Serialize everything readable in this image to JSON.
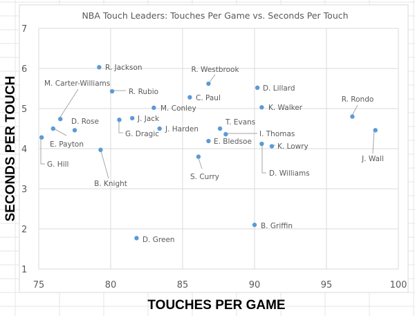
{
  "chart_data": {
    "type": "scatter",
    "title": "NBA Touch Leaders: Touches Per Game vs. Seconds Per Touch",
    "xlabel": "TOUCHES PER GAME",
    "ylabel": "SECONDS PER TOUCH",
    "xlim": [
      75,
      100
    ],
    "ylim": [
      1,
      7
    ],
    "xticks": [
      "75",
      "80",
      "85",
      "90",
      "95",
      "100"
    ],
    "yticks": [
      "1",
      "2",
      "3",
      "4",
      "5",
      "6",
      "7"
    ],
    "grid": true,
    "legend": "none",
    "marker_color": "#5b9bd5",
    "points": [
      {
        "label": "R. Jackson",
        "x": 79.2,
        "y": 6.03
      },
      {
        "label": "R. Westbrook",
        "x": 86.8,
        "y": 5.62
      },
      {
        "label": "D. Lillard",
        "x": 90.2,
        "y": 5.52
      },
      {
        "label": "R. Rubio",
        "x": 80.1,
        "y": 5.43
      },
      {
        "label": "C. Paul",
        "x": 85.5,
        "y": 5.28
      },
      {
        "label": "M. Conley",
        "x": 83.0,
        "y": 5.02
      },
      {
        "label": "K. Walker",
        "x": 90.5,
        "y": 5.03
      },
      {
        "label": "R. Rondo",
        "x": 96.8,
        "y": 4.8
      },
      {
        "label": "M. Carter-Williams",
        "x": 76.5,
        "y": 4.74
      },
      {
        "label": "J. Jack",
        "x": 81.5,
        "y": 4.76
      },
      {
        "label": "G. Dragic",
        "x": 80.6,
        "y": 4.72
      },
      {
        "label": "D. Rose",
        "x": 77.5,
        "y": 4.46
      },
      {
        "label": "E. Payton",
        "x": 76.0,
        "y": 4.5
      },
      {
        "label": "J. Harden",
        "x": 83.4,
        "y": 4.5
      },
      {
        "label": "T. Evans",
        "x": 87.6,
        "y": 4.5
      },
      {
        "label": "I. Thomas",
        "x": 88.0,
        "y": 4.36
      },
      {
        "label": "J. Wall",
        "x": 98.4,
        "y": 4.46
      },
      {
        "label": "E. Bledsoe",
        "x": 86.8,
        "y": 4.19
      },
      {
        "label": "D. Williams",
        "x": 90.5,
        "y": 4.12
      },
      {
        "label": "K. Lowry",
        "x": 91.2,
        "y": 4.06
      },
      {
        "label": "G. Hill",
        "x": 75.2,
        "y": 4.28
      },
      {
        "label": "B. Knight",
        "x": 79.3,
        "y": 3.97
      },
      {
        "label": "S. Curry",
        "x": 86.1,
        "y": 3.8
      },
      {
        "label": "B. Griffin",
        "x": 90.0,
        "y": 2.1
      },
      {
        "label": "D. Green",
        "x": 81.8,
        "y": 1.77
      }
    ]
  }
}
